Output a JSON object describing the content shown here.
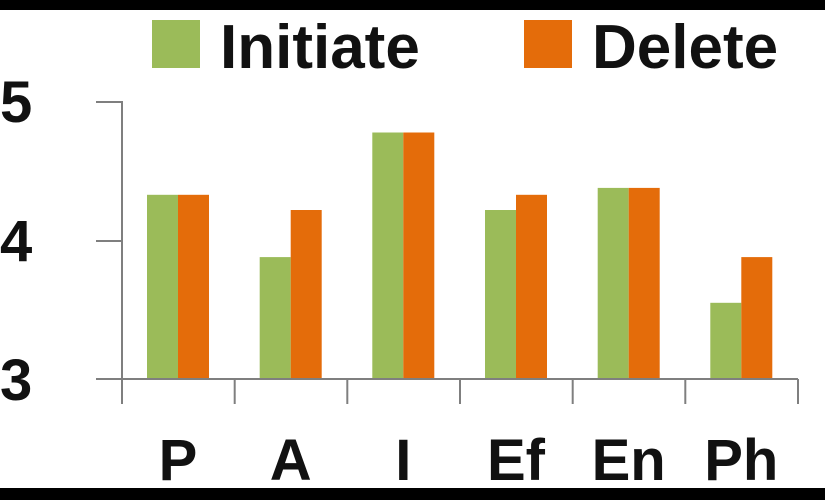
{
  "chart_data": {
    "type": "bar",
    "categories": [
      "P",
      "A",
      "I",
      "Ef",
      "En",
      "Ph"
    ],
    "series": [
      {
        "name": "Initiate",
        "values": [
          4.33,
          3.88,
          4.78,
          4.22,
          4.38,
          3.55
        ],
        "color": "#9bbb59"
      },
      {
        "name": "Delete",
        "values": [
          4.33,
          4.22,
          4.78,
          4.33,
          4.38,
          3.88
        ],
        "color": "#e46c0a"
      }
    ],
    "yticks": [
      "5",
      "4",
      "3"
    ],
    "ylim": [
      3,
      5
    ],
    "grid": false,
    "legend_position": "top",
    "axis_color": "#7f7f7f"
  }
}
